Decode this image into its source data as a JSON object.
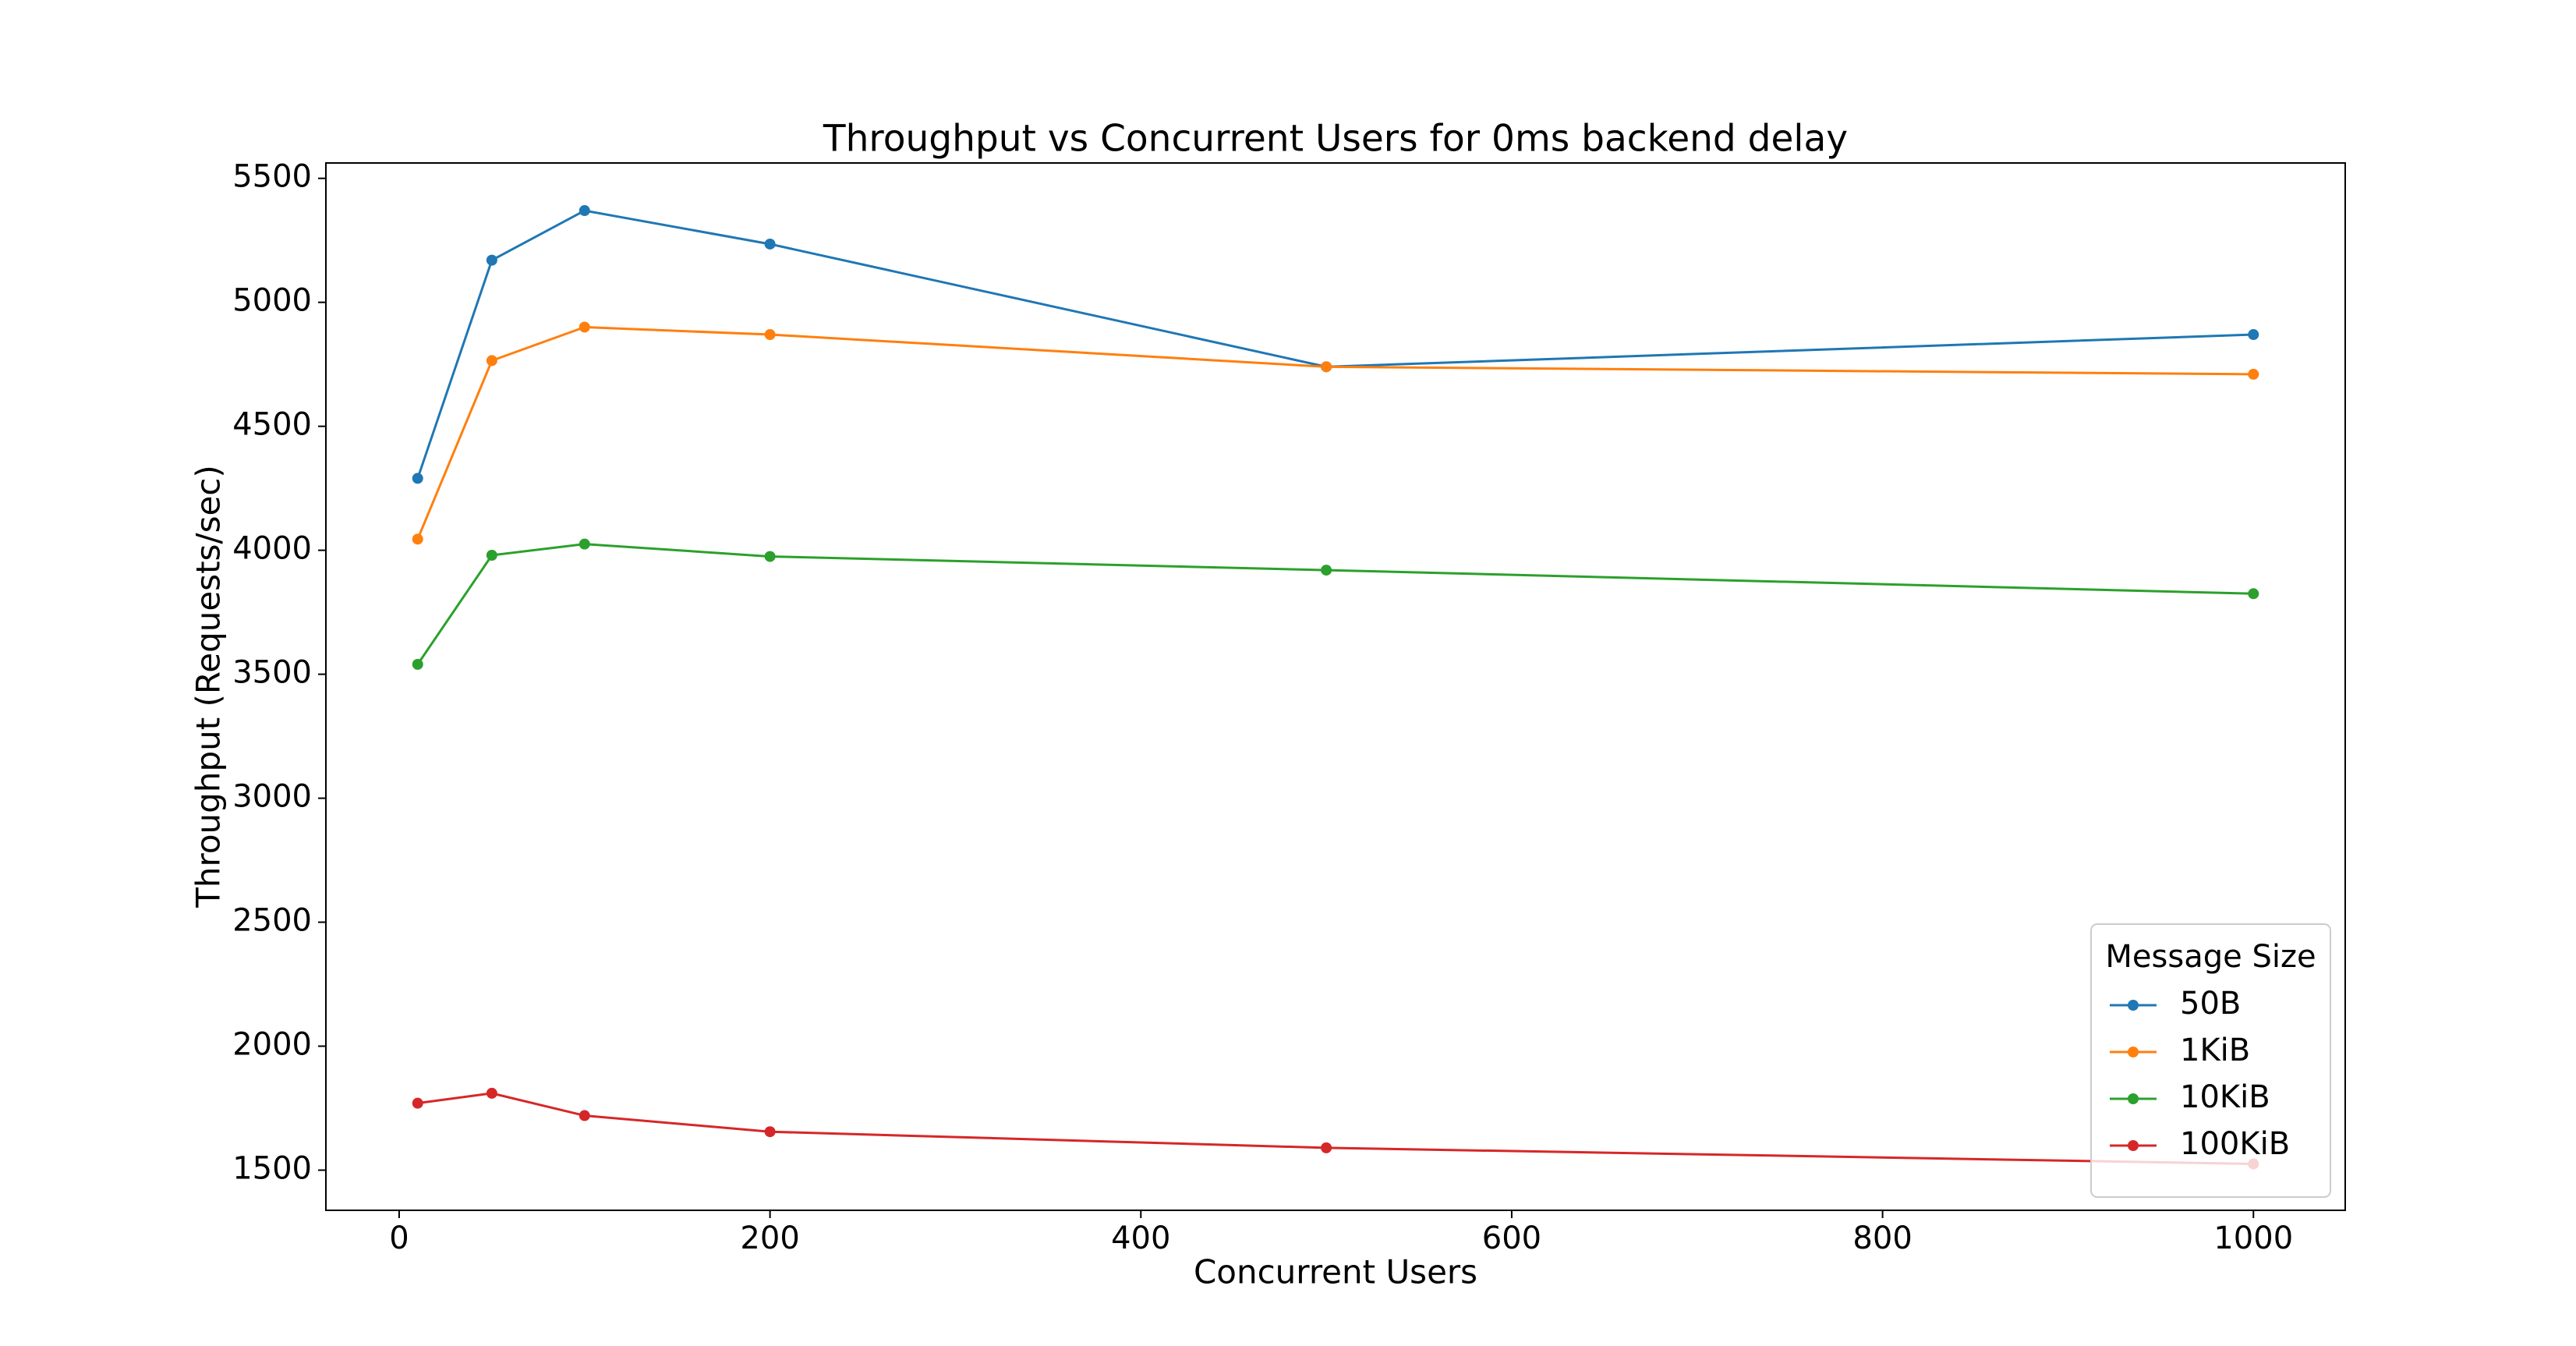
{
  "chart_data": {
    "type": "line",
    "title": "Throughput vs Concurrent Users for 0ms backend delay",
    "x_label": "Concurrent Users",
    "y_label": "Throughput (Requests/sec)",
    "x": [
      10,
      50,
      100,
      200,
      500,
      1000
    ],
    "series": [
      {
        "name": "50B",
        "color": "#1f77b4",
        "values": [
          4290,
          5170,
          5370,
          5235,
          4740,
          4870
        ]
      },
      {
        "name": "1KiB",
        "color": "#ff7f0e",
        "values": [
          4045,
          4765,
          4900,
          4870,
          4740,
          4710
        ]
      },
      {
        "name": "10KiB",
        "color": "#2ca02c",
        "values": [
          3540,
          3980,
          4025,
          3975,
          3920,
          3825
        ]
      },
      {
        "name": "100KiB",
        "color": "#d62728",
        "values": [
          1770,
          1810,
          1720,
          1655,
          1590,
          1525
        ]
      }
    ],
    "xlim": [
      -39.5,
      1049.5
    ],
    "xticks": [
      0,
      200,
      400,
      600,
      800,
      1000
    ],
    "ylim": [
      1338,
      5562
    ],
    "yticks": [
      1500,
      2000,
      2500,
      3000,
      3500,
      4000,
      4500,
      5000,
      5500
    ],
    "grid": false,
    "legend_title": "Message Size",
    "legend_position": "lower-right"
  }
}
